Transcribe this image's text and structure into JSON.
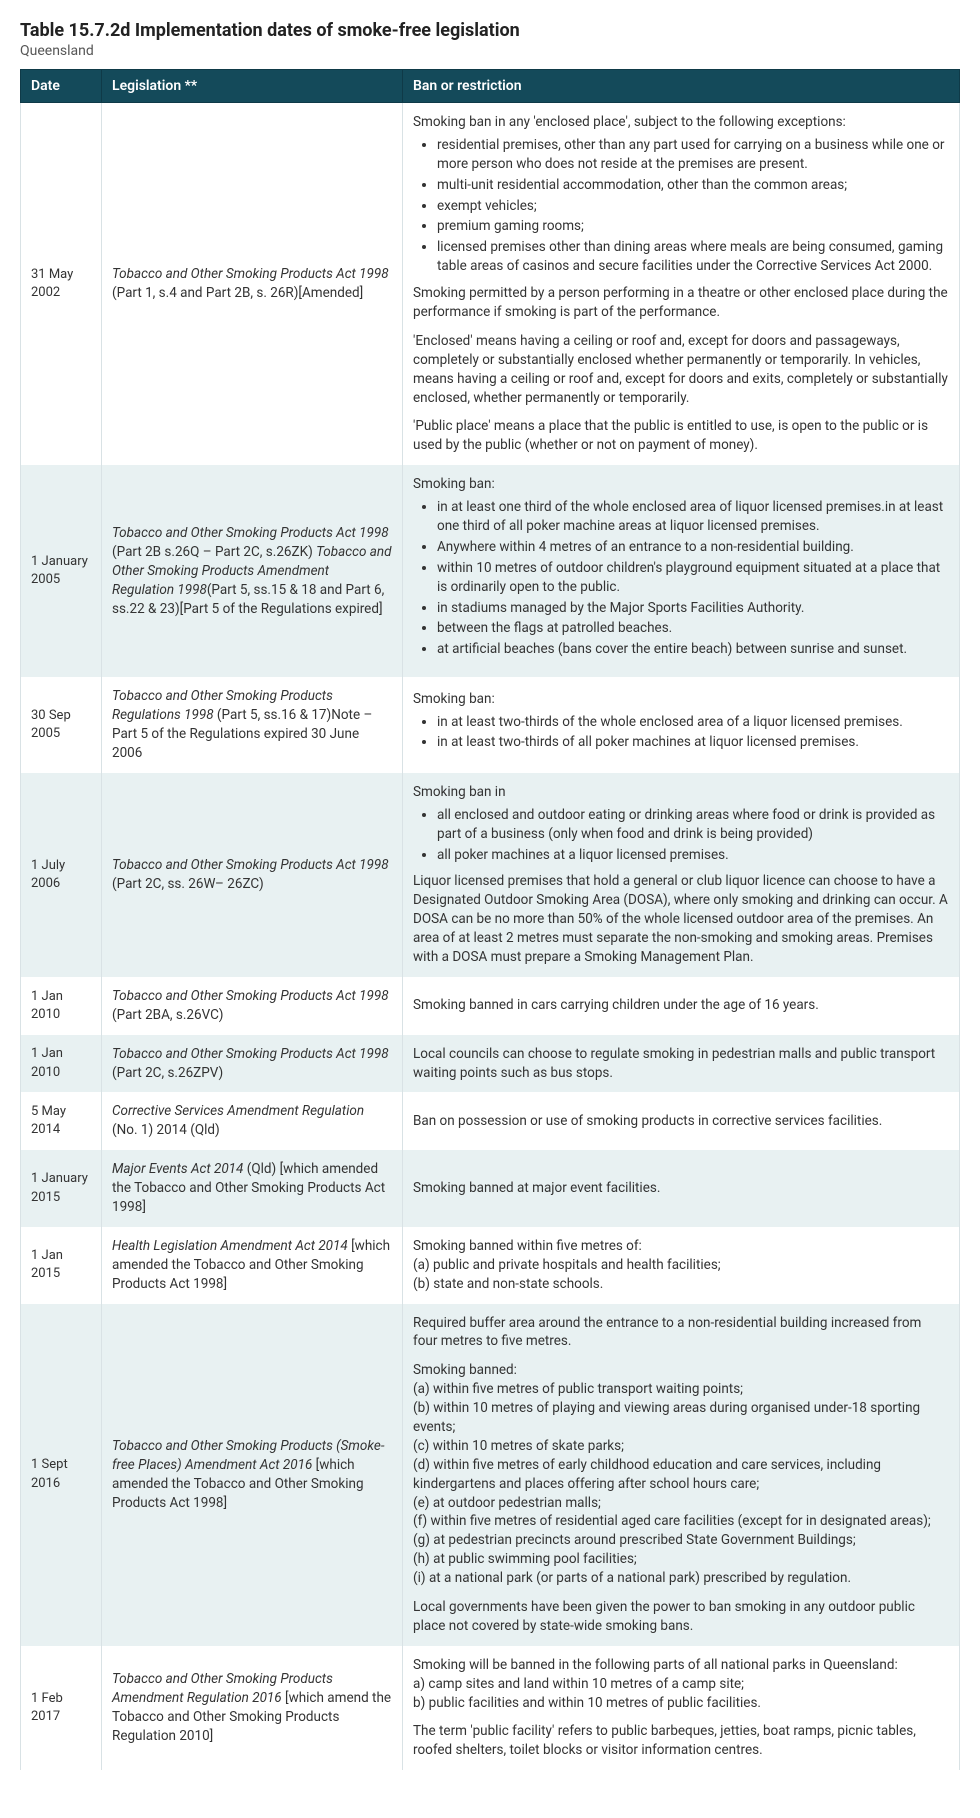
{
  "title": "Table 15.7.2d Implementation dates of smoke-free legislation",
  "subtitle": "Queensland",
  "columns": [
    "Date",
    "Legislation **",
    "Ban or restriction"
  ],
  "colors": {
    "header_bg": "#144a5a",
    "header_text": "#ffffff",
    "row_alt_bg": "#e8f1f2",
    "row_bg": "#ffffff",
    "border": "#d9e2e5",
    "text": "#333333"
  },
  "rows": [
    {
      "date": "31 May 2002",
      "leg_italic": "Tobacco and Other Smoking Products Act 1998",
      "leg_rest": " (Part 1, s.4 and Part 2B, s. 26R)[Amended]",
      "ban_intro": "Smoking ban in any 'enclosed place', subject to the following exceptions:",
      "ban_list": [
        "residential premises, other than any part used for carrying on a business while one or more person who does not reside at the premises are present.",
        "multi-unit residential accommodation, other than the common areas;",
        "exempt vehicles;",
        "premium gaming rooms;",
        "licensed premises other than dining areas where meals are being consumed, gaming table areas of casinos and secure facilities under the Corrective Services Act 2000."
      ],
      "ban_paras": [
        "Smoking permitted by a person performing in a theatre or other enclosed place during the performance if smoking is part of the performance.",
        "'Enclosed' means having a ceiling or roof and, except for doors and passageways, completely or substantially enclosed whether permanently or temporarily. In vehicles, means having a ceiling or roof and, except for doors and exits, completely or substantially enclosed, whether permanently or temporarily.",
        "'Public place' means a place that the public is entitled to use, is open to the public or is used by the public (whether or not on payment of money)."
      ]
    },
    {
      "date": "1 January 2005",
      "leg_italic": "Tobacco and Other Smoking Products Act 1998",
      "leg_mid": " (Part 2B s.26Q – Part 2C, s.26ZK) ",
      "leg_italic2": "Tobacco and Other Smoking Products Amendment Regulation 1998",
      "leg_rest": "(Part 5, ss.15 & 18 and Part 6, ss.22 & 23)[Part 5 of the Regulations expired]",
      "ban_intro": "Smoking ban:",
      "ban_list": [
        "in at least one third of the whole enclosed area of liquor licensed premises.in at least one third of all poker machine areas at liquor licensed premises.",
        "Anywhere within 4 metres of an entrance to a non-residential building.",
        "within 10 metres of outdoor children's playground equipment situated at a place that is ordinarily open to the public.",
        "in stadiums managed by the Major Sports Facilities Authority.",
        "between the flags at patrolled beaches.",
        "at artificial beaches (bans cover the entire beach) between sunrise and sunset."
      ]
    },
    {
      "date": "30 Sep 2005",
      "leg_italic": "Tobacco and Other Smoking Products Regulations 1998",
      "leg_rest": " (Part 5, ss.16 & 17)Note – Part 5 of the Regulations expired 30 June 2006",
      "ban_intro": "Smoking ban:",
      "ban_list": [
        "in at least two-thirds of the whole enclosed area of a liquor licensed premises.",
        "in at least two-thirds of all poker machines at liquor licensed premises."
      ]
    },
    {
      "date": "1 July 2006",
      "leg_italic": "Tobacco and Other Smoking Products Act 1998",
      "leg_rest": " (Part 2C, ss. 26W– 26ZC)",
      "ban_intro": "Smoking ban in",
      "ban_list": [
        "all enclosed and outdoor eating or drinking areas where food or drink is provided as part of a business (only when food and drink is being provided)",
        "all poker machines at a liquor licensed premises."
      ],
      "ban_paras": [
        "Liquor licensed premises that hold a general or club liquor licence can choose to have a Designated Outdoor Smoking Area (DOSA), where only smoking and drinking can occur. A DOSA can be no more than 50% of the whole licensed outdoor area of the premises. An area of at least 2 metres must separate the non-smoking and smoking areas. Premises with a DOSA must prepare a Smoking Management Plan."
      ]
    },
    {
      "date": "1 Jan 2010",
      "leg_italic": "Tobacco and Other Smoking Products Act 1998",
      "leg_rest": " (Part 2BA, s.26VC)",
      "ban_text": "Smoking banned in cars carrying children under the age of 16 years."
    },
    {
      "date": "1 Jan 2010",
      "leg_italic": "Tobacco and Other Smoking Products Act 1998",
      "leg_rest": " (Part 2C, s.26ZPV)",
      "ban_text": "Local councils can choose to regulate smoking in pedestrian malls and public transport waiting points such as bus stops."
    },
    {
      "date": "5 May 2014",
      "leg_italic": "Corrective Services Amendment Regulation",
      "leg_rest": " (No. 1) 2014 (Qld)",
      "ban_text": "Ban on possession or use of smoking products in corrective services facilities."
    },
    {
      "date": "1 January 2015",
      "leg_italic": "Major Events Act 2014",
      "leg_rest": " (Qld) [which amended the Tobacco and Other Smoking Products Act 1998]",
      "ban_text": "Smoking banned at major event facilities."
    },
    {
      "date": "1 Jan 2015",
      "leg_italic": "Health Legislation Amendment Act 2014",
      "leg_rest": " [which amended the Tobacco and Other Smoking Products Act 1998]",
      "ban_text": "Smoking banned within five metres of:\n(a) public and private hospitals and health facilities;\n(b) state and non-state schools."
    },
    {
      "date": "1 Sept 2016",
      "leg_italic": "Tobacco and Other Smoking Products (Smoke-free Places) Amendment Act 2016",
      "leg_rest": " [which amended the Tobacco and Other Smoking Products Act 1998]",
      "ban_text": "Required buffer area around the entrance to a non-residential building increased from four metres to five metres.\n\nSmoking banned:\n(a) within five metres of public transport waiting points;\n(b) within 10 metres of playing and viewing areas during organised under-18 sporting events;\n(c) within 10 metres of skate parks;\n(d) within five metres of early childhood education and care services, including kindergartens and places offering after school hours care;\n(e) at outdoor pedestrian malls;\n(f) within five metres of residential aged care facilities (except for in designated areas);\n(g) at pedestrian precincts around prescribed State Government Buildings;\n(h) at public swimming pool facilities;\n(i) at a national park (or parts of a national park) prescribed by regulation.\n\nLocal governments have been given the power to ban smoking in any outdoor public place not covered by state-wide smoking bans."
    },
    {
      "date": "1 Feb 2017",
      "leg_italic": "Tobacco and Other Smoking Products Amendment Regulation 2016",
      "leg_rest": " [which amend the Tobacco and Other Smoking Products Regulation 2010]",
      "ban_text": "Smoking will be banned in the following parts of all national parks in Queensland:\na) camp sites and land within 10 metres of a camp site;\nb) public facilities and within 10 metres of public facilities.\n\nThe term 'public facility' refers to public barbeques, jetties, boat ramps, picnic tables, roofed shelters, toilet blocks or visitor information centres."
    }
  ]
}
